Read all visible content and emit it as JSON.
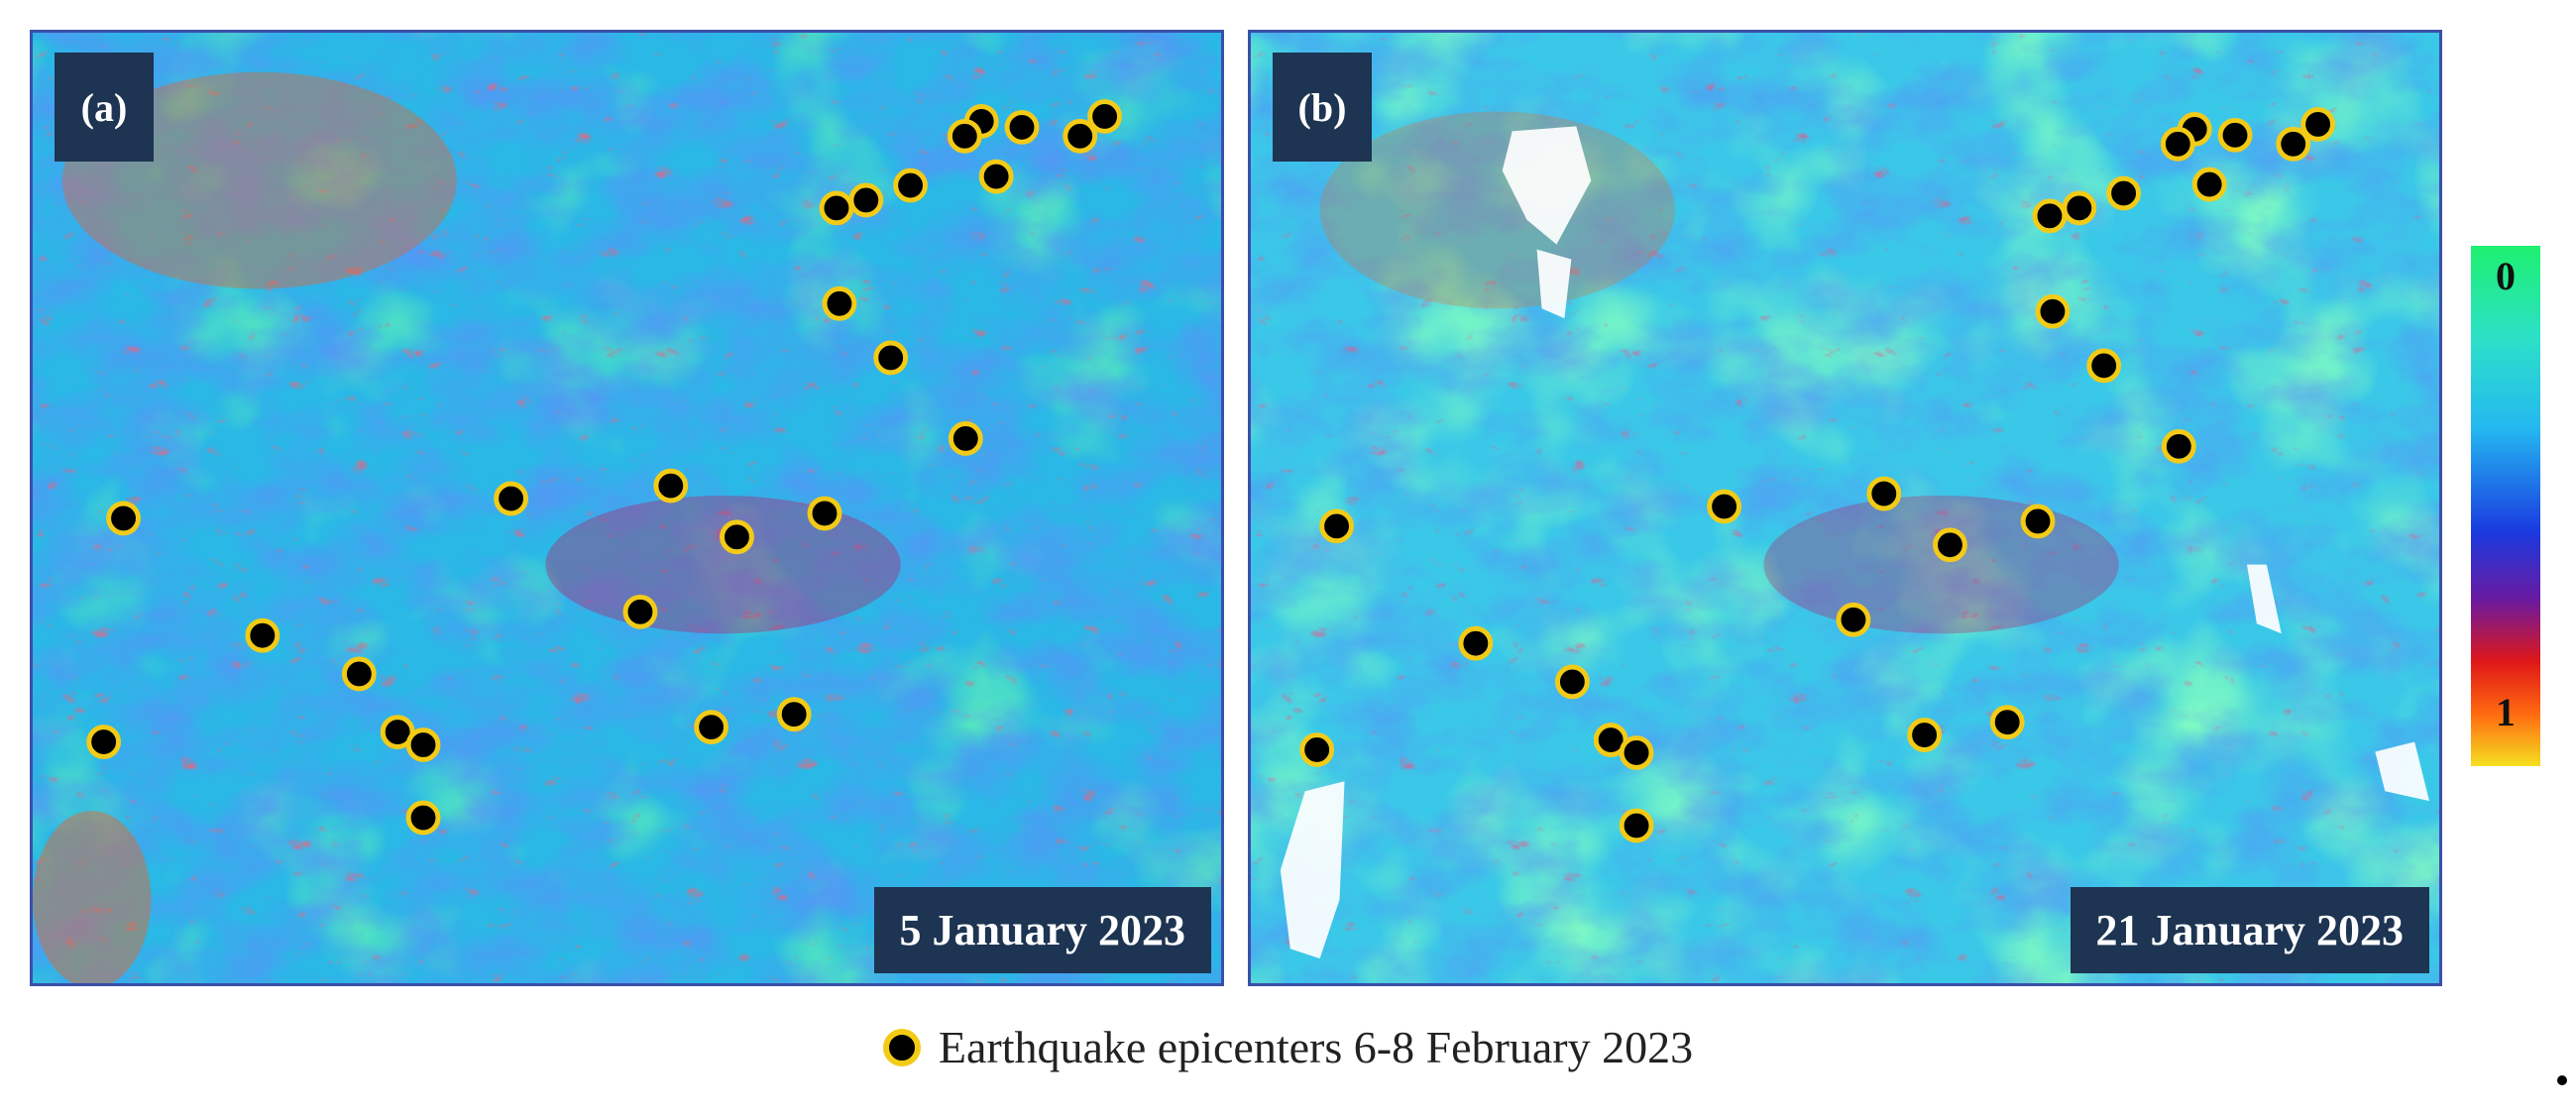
{
  "figure": {
    "colorbar": {
      "top_label": "0",
      "bottom_label": "1",
      "colors": [
        "#1ef070",
        "#2ce0c8",
        "#24b8f0",
        "#1a3ae0",
        "#6a1aa0",
        "#e01818",
        "#ff6a10",
        "#f5e020"
      ]
    },
    "legend": {
      "label": "Earthquake epicenters 6-8 February 2023",
      "marker_fill": "#000000",
      "marker_stroke": "#f3cb17"
    },
    "trailing_mark": "."
  },
  "panels": [
    {
      "label": "(a)",
      "date": "5 January 2023",
      "has_snow": false
    },
    {
      "label": "(b)",
      "date": "21 January 2023",
      "has_snow": true
    }
  ]
}
